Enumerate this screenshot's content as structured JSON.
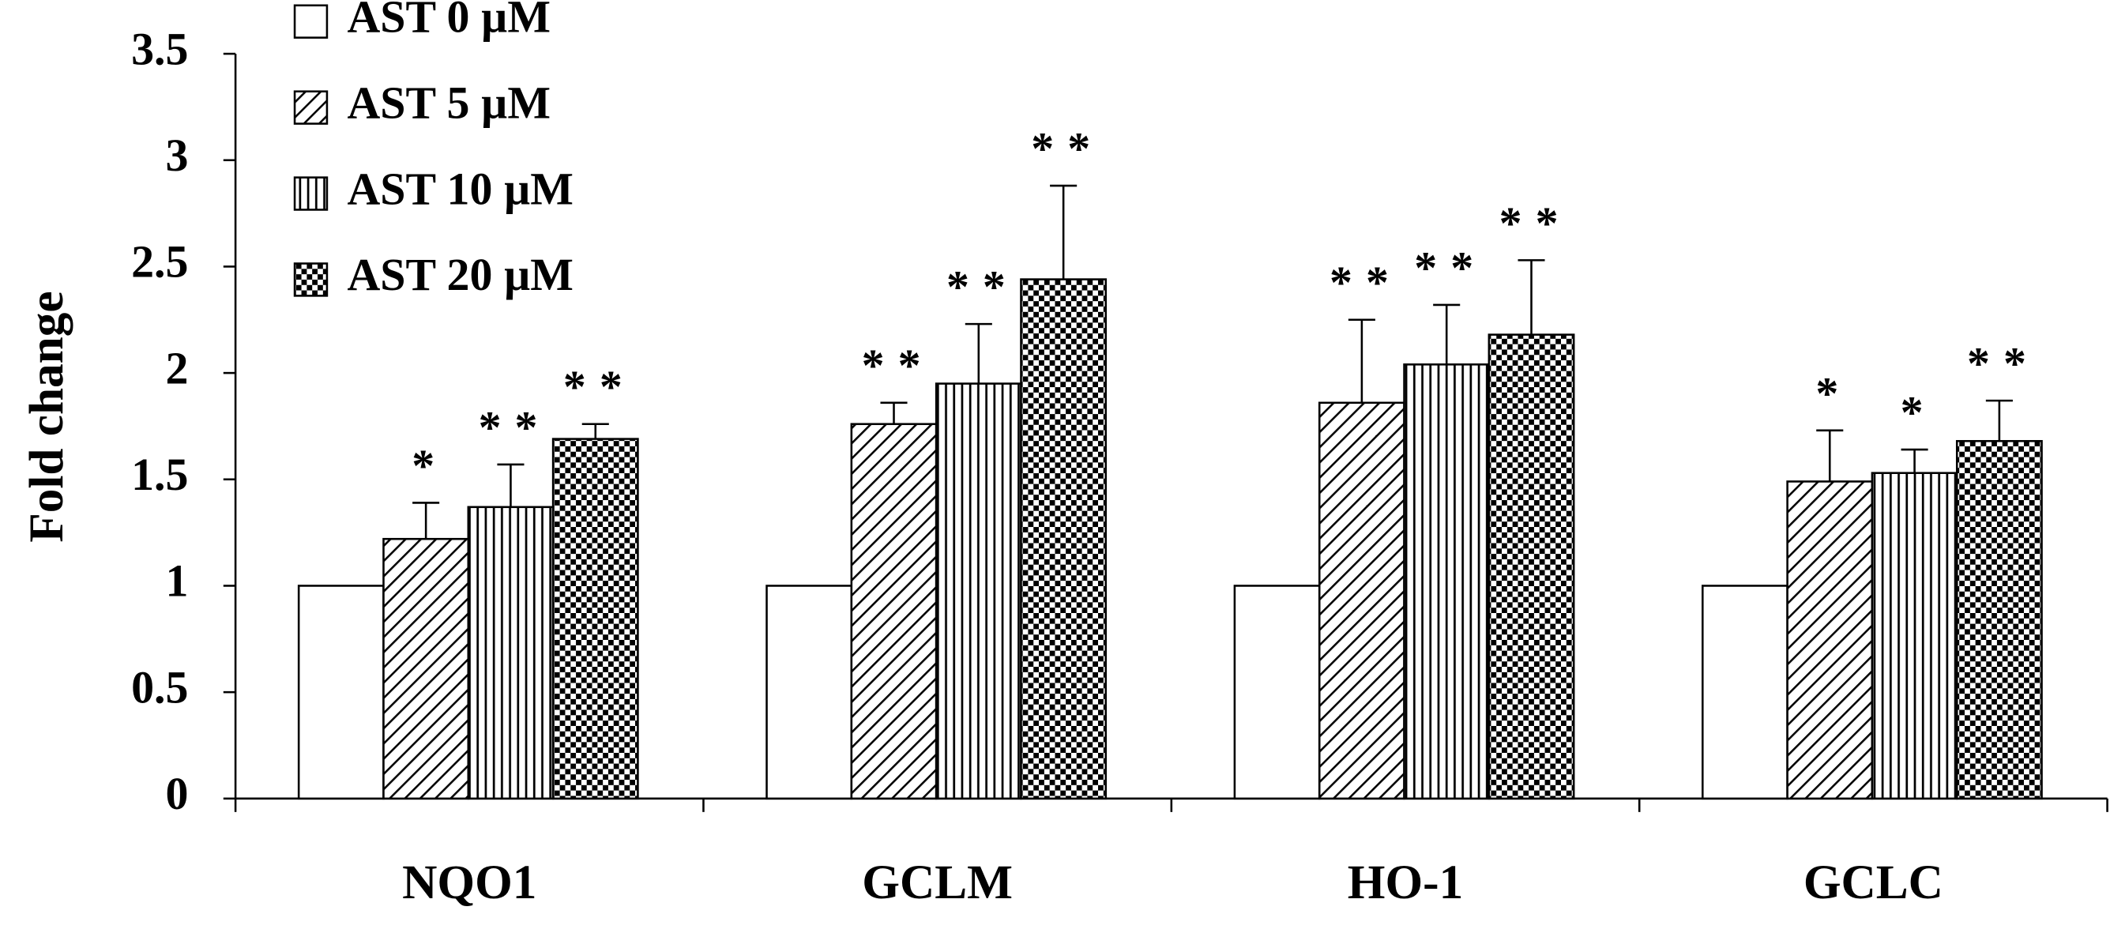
{
  "chart_data": {
    "type": "bar",
    "ylabel": "Fold  change",
    "categories": [
      "NQO1",
      "GCLM",
      "HO-1",
      "GCLC"
    ],
    "series": [
      {
        "name": "AST 0 µM",
        "pattern": "none",
        "values": [
          1,
          1,
          1,
          1
        ],
        "errors": [
          0,
          0,
          0,
          0
        ],
        "annotations": [
          null,
          null,
          null,
          null
        ]
      },
      {
        "name": "AST 5 µM",
        "pattern": "diagonal",
        "values": [
          1.22,
          1.76,
          1.86,
          1.49
        ],
        "errors": [
          0.17,
          0.1,
          0.39,
          0.24
        ],
        "annotations": [
          "*",
          "**",
          "**",
          "*"
        ]
      },
      {
        "name": "AST 10 µM",
        "pattern": "vertical",
        "values": [
          1.37,
          1.95,
          2.04,
          1.53
        ],
        "errors": [
          0.2,
          0.28,
          0.28,
          0.11
        ],
        "annotations": [
          "**",
          "**",
          "**",
          "*"
        ]
      },
      {
        "name": "AST 20 µM",
        "pattern": "checker",
        "values": [
          1.69,
          2.44,
          2.18,
          1.68
        ],
        "errors": [
          0.07,
          0.44,
          0.35,
          0.19
        ],
        "annotations": [
          "**",
          "**",
          "**",
          "**"
        ]
      }
    ],
    "ylim": [
      0,
      3.5
    ],
    "yticks": [
      0,
      0.5,
      1,
      1.5,
      2,
      2.5,
      3,
      3.5
    ],
    "grid": false,
    "legend": "upper left"
  }
}
